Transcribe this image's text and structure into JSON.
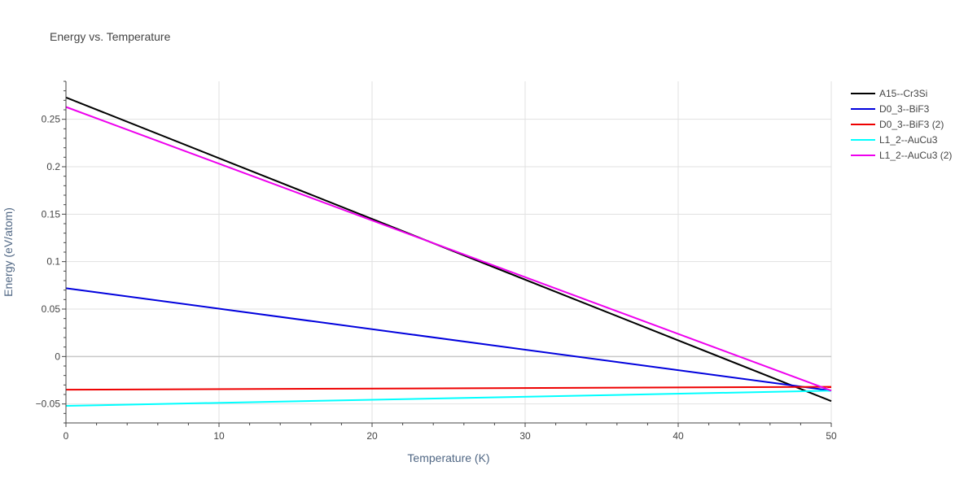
{
  "chart_data": {
    "type": "line",
    "title": "Energy vs. Temperature",
    "xlabel": "Temperature (K)",
    "ylabel": "Energy (eV/atom)",
    "xlim": [
      0,
      50
    ],
    "ylim": [
      -0.07,
      0.29
    ],
    "x_ticks": [
      0,
      10,
      20,
      30,
      40,
      50
    ],
    "y_ticks": [
      -0.05,
      0,
      0.05,
      0.1,
      0.15,
      0.2,
      0.25
    ],
    "x_tick_labels": [
      "0",
      "10",
      "20",
      "30",
      "40",
      "50"
    ],
    "y_tick_labels": [
      "−0.05",
      "0",
      "0.05",
      "0.1",
      "0.15",
      "0.2",
      "0.25"
    ],
    "grid": true,
    "legend_position": "top-right outside",
    "series": [
      {
        "name": "A15--Cr3Si",
        "color": "#000000",
        "x": [
          0,
          50
        ],
        "y": [
          0.273,
          -0.047
        ]
      },
      {
        "name": "D0_3--BiF3",
        "color": "#0000dd",
        "x": [
          0,
          50
        ],
        "y": [
          0.072,
          -0.036
        ]
      },
      {
        "name": "D0_3--BiF3 (2)",
        "color": "#ee0000",
        "x": [
          0,
          50
        ],
        "y": [
          -0.035,
          -0.032
        ]
      },
      {
        "name": "L1_2--AuCu3",
        "color": "#00ffff",
        "x": [
          0,
          50
        ],
        "y": [
          -0.052,
          -0.036
        ]
      },
      {
        "name": "L1_2--AuCu3 (2)",
        "color": "#ee00ee",
        "x": [
          0,
          50
        ],
        "y": [
          0.263,
          -0.036
        ]
      }
    ]
  }
}
